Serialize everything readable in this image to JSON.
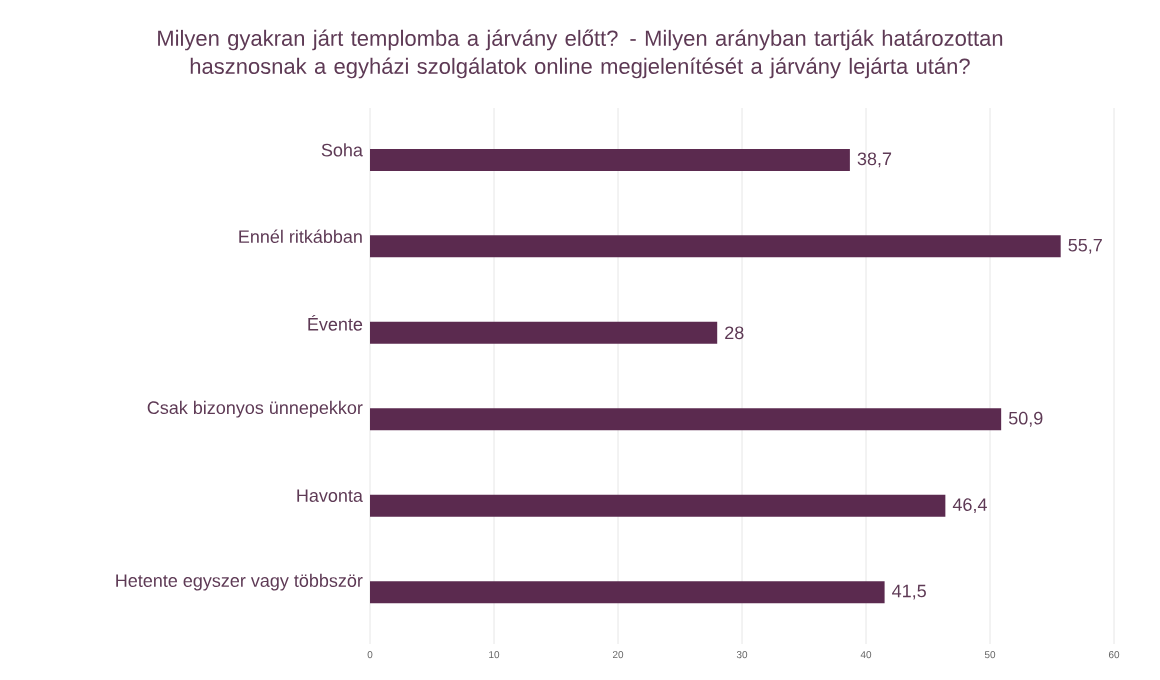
{
  "chart_data": {
    "type": "bar",
    "orientation": "horizontal",
    "title": "Milyen gyakran járt templomba a járvány előtt? - Milyen arányban tartják határozottan hasznosnak a egyházi szolgálatok online megjelenítését a járvány lejárta után?",
    "categories": [
      "Soha",
      "Ennél ritkábban",
      "Évente",
      "Csak bizonyos ünnepekkor",
      "Havonta",
      "Hetente egyszer vagy többször"
    ],
    "values": [
      38.7,
      55.7,
      28,
      50.9,
      46.4,
      41.5
    ],
    "value_labels": [
      "38,7",
      "55,7",
      "28",
      "50,9",
      "46,4",
      "41,5"
    ],
    "color": "#5b2a4f",
    "xlim": [
      0,
      60
    ],
    "xticks": [
      0,
      10,
      20,
      30,
      40,
      50,
      60
    ],
    "grid": "x"
  }
}
